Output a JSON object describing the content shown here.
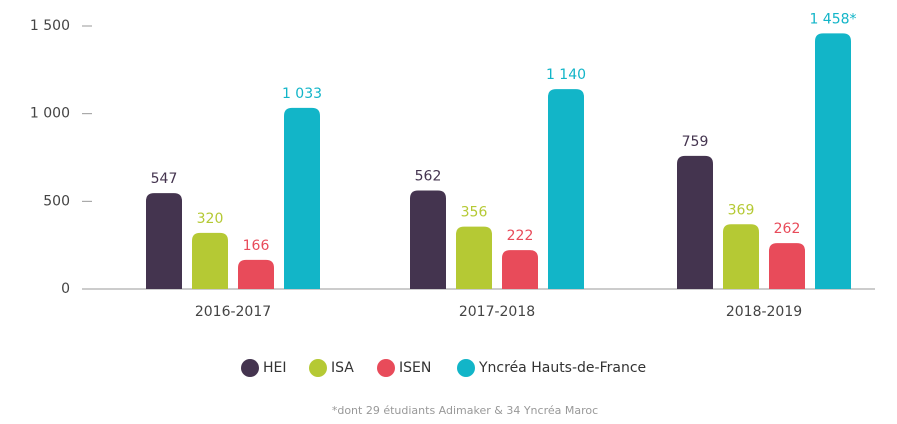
{
  "chart_data": {
    "type": "bar",
    "categories": [
      "2016-2017",
      "2017-2018",
      "2018-2019"
    ],
    "series": [
      {
        "name": "HEI",
        "color": "#44344f",
        "values": [
          547,
          562,
          759
        ]
      },
      {
        "name": "ISA",
        "color": "#b5c934",
        "values": [
          320,
          356,
          369
        ]
      },
      {
        "name": "ISEN",
        "color": "#e84b5a",
        "values": [
          166,
          222,
          262
        ]
      },
      {
        "name": "Yncréa Hauts-de-France",
        "color": "#12b5c8",
        "values": [
          1033,
          1140,
          1458
        ],
        "value_labels": [
          "1 033",
          "1 140",
          "1 458*"
        ]
      }
    ],
    "ylim": [
      0,
      1500
    ],
    "yticks": [
      0,
      500,
      {
        "value": 1000,
        "label": "1 000"
      },
      {
        "value": 1500,
        "label": "1 500"
      }
    ],
    "note": "*dont 29 étudiants Adimaker & 34 Yncréa Maroc"
  }
}
